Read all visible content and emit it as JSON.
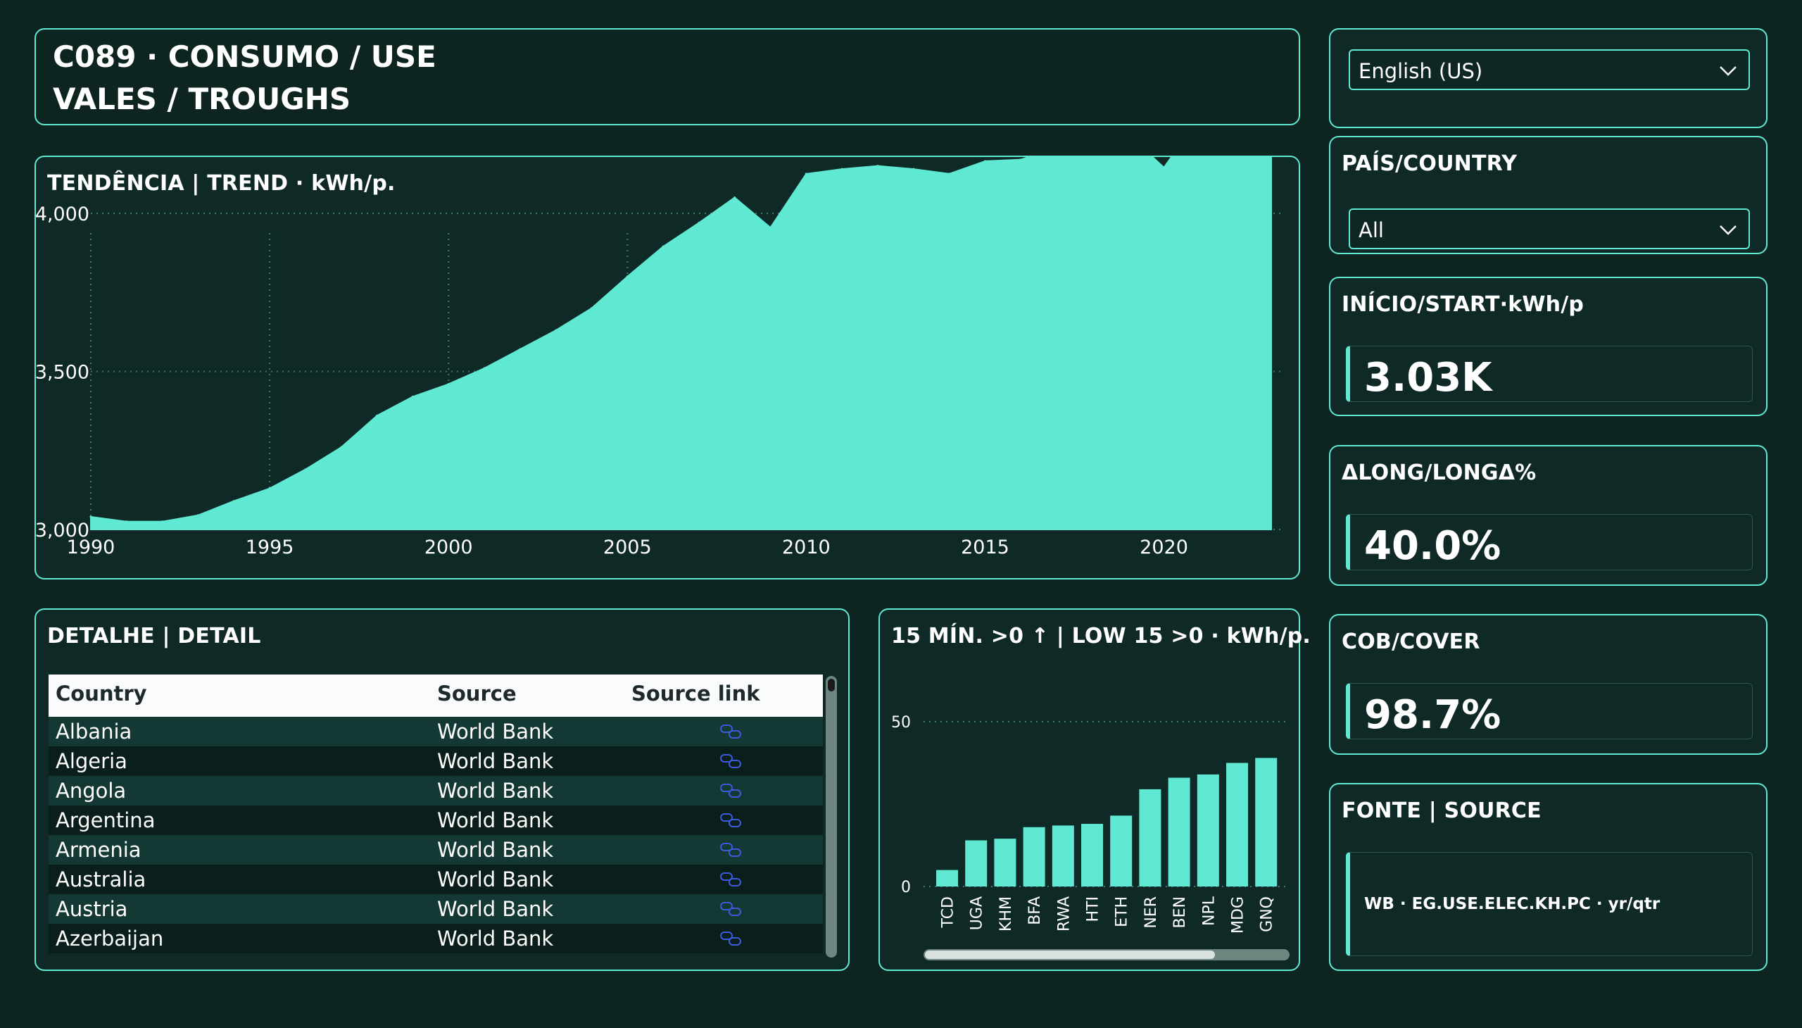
{
  "header": {
    "line1": "C089 · CONSUMO / USE",
    "line2": "VALES / TROUGHS"
  },
  "trend": {
    "title": "TENDÊNCIA | TREND · kWh/p."
  },
  "language": {
    "selected": "English (US)"
  },
  "country_filter": {
    "title": "PAÍS/COUNTRY",
    "selected": "All"
  },
  "kpis": {
    "start": {
      "title": "INÍCIO/START·kWh/p",
      "value": "3.03K"
    },
    "delta": {
      "title": "ΔLONG/LONGΔ%",
      "value": "40.0%"
    },
    "cover": {
      "title": "COB/COVER",
      "value": "98.7%"
    }
  },
  "source": {
    "title": "FONTE | SOURCE",
    "text": "WB · EG.USE.ELEC.KH.PC · yr/qtr"
  },
  "detail": {
    "title": "DETALHE | DETAIL",
    "columns": [
      "Country",
      "Source",
      "Source link"
    ],
    "rows": [
      {
        "country": "Albania",
        "source": "World Bank"
      },
      {
        "country": "Algeria",
        "source": "World Bank"
      },
      {
        "country": "Angola",
        "source": "World Bank"
      },
      {
        "country": "Argentina",
        "source": "World Bank"
      },
      {
        "country": "Armenia",
        "source": "World Bank"
      },
      {
        "country": "Australia",
        "source": "World Bank"
      },
      {
        "country": "Austria",
        "source": "World Bank"
      },
      {
        "country": "Azerbaijan",
        "source": "World Bank"
      }
    ]
  },
  "low15": {
    "title": "15 MÍN. >0 ↑ | LOW 15 >0 · kWh/p."
  },
  "colors": {
    "accent": "#5fe9d3",
    "background": "#0e2420",
    "panel": "#0f2a26",
    "link": "#3b5bdb"
  },
  "chart_data": [
    {
      "type": "area",
      "x": [
        1990,
        1991,
        1992,
        1993,
        1994,
        1995,
        1996,
        1997,
        1998,
        1999,
        2000,
        2001,
        2002,
        2003,
        2004,
        2005,
        2006,
        2007,
        2008,
        2009,
        2010,
        2011,
        2012,
        2013,
        2014,
        2015,
        2016,
        2017,
        2018,
        2019,
        2020,
        2021,
        2022,
        2023
      ],
      "values": [
        3040,
        3025,
        3025,
        3045,
        3090,
        3130,
        3190,
        3260,
        3360,
        3420,
        3460,
        3510,
        3570,
        3630,
        3700,
        3800,
        3895,
        3970,
        4050,
        3955,
        4125,
        4140,
        4150,
        4140,
        4125,
        4165,
        4170,
        4210,
        4255,
        4250,
        4145,
        4305,
        4255,
        4260
      ],
      "xticks": [
        "1990",
        "1995",
        "2000",
        "2005",
        "2010",
        "2015",
        "2020"
      ],
      "yticks": [
        "3,000",
        "3,500",
        "4,000"
      ],
      "ylim": [
        3000,
        4400
      ],
      "grid": true
    },
    {
      "type": "bar",
      "categories": [
        "TCD",
        "UGA",
        "KHM",
        "BFA",
        "RWA",
        "HTI",
        "ETH",
        "NER",
        "BEN",
        "NPL",
        "MDG",
        "GNQ"
      ],
      "values": [
        5,
        14,
        14.5,
        18,
        18.5,
        19,
        21.5,
        29.5,
        33,
        34,
        37.5,
        39
      ],
      "yticks": [
        "0",
        "50"
      ],
      "ylim": [
        0,
        50
      ],
      "grid": true
    }
  ]
}
